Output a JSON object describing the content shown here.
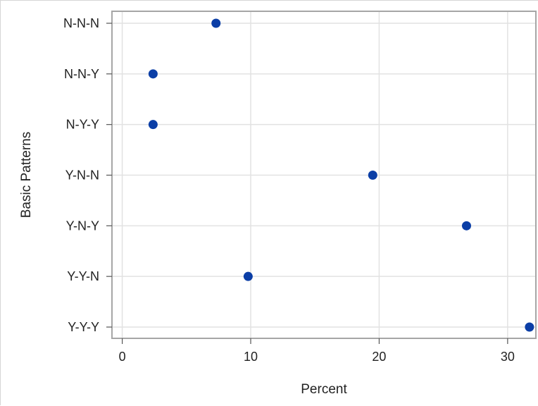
{
  "chart_data": {
    "type": "scatter",
    "title": "",
    "xlabel": "Percent",
    "ylabel": "Basic Patterns",
    "categories": [
      "N-N-N",
      "N-N-Y",
      "N-Y-Y",
      "Y-N-N",
      "Y-N-Y",
      "Y-Y-N",
      "Y-Y-Y"
    ],
    "values": [
      7.3,
      2.4,
      2.4,
      19.5,
      26.8,
      9.8,
      31.7
    ],
    "xlim": [
      -0.8,
      32.2
    ],
    "xticks": [
      0,
      10,
      20,
      30
    ],
    "grid": true,
    "legend": "none",
    "colors": {
      "marker": "#0b3ea6",
      "grid": "#e2e2e2",
      "frame": "#a6a6a6",
      "text": "#222222"
    }
  }
}
